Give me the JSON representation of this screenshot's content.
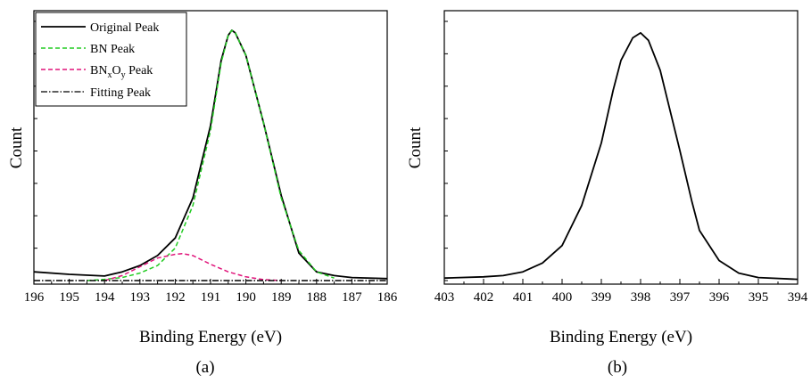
{
  "chart_data": [
    {
      "type": "line",
      "panel_label": "(a)",
      "xlabel": "Binding Energy (eV)",
      "ylabel": "Count",
      "xlim": [
        196,
        186
      ],
      "x_reversed": true,
      "ylim": [
        0,
        1.05
      ],
      "y_tick_labels_shown": false,
      "x_ticks": [
        196,
        195,
        194,
        193,
        192,
        191,
        190,
        189,
        188,
        187,
        186
      ],
      "legend_position": "top-left",
      "grid": false,
      "series": [
        {
          "name": "Original Peak",
          "style": "solid",
          "color": "#000000",
          "x": [
            196,
            195,
            194,
            193.5,
            193,
            192.5,
            192,
            191.5,
            191,
            190.7,
            190.5,
            190.4,
            190.3,
            190,
            189.5,
            189,
            188.5,
            188,
            187.5,
            187,
            186
          ],
          "y": [
            0.035,
            0.025,
            0.018,
            0.035,
            0.06,
            0.1,
            0.17,
            0.33,
            0.62,
            0.88,
            0.98,
            1.0,
            0.99,
            0.9,
            0.63,
            0.34,
            0.11,
            0.035,
            0.02,
            0.012,
            0.008
          ]
        },
        {
          "name": "BN Peak",
          "style": "dashed",
          "color": "#22cc22",
          "x": [
            194.5,
            194,
            193.5,
            193,
            192.5,
            192,
            191.5,
            191,
            190.7,
            190.5,
            190.4,
            190.3,
            190,
            189.5,
            189,
            188.5,
            188,
            187.5
          ],
          "y": [
            0.0,
            0.005,
            0.012,
            0.03,
            0.06,
            0.13,
            0.3,
            0.6,
            0.87,
            0.98,
            1.0,
            0.99,
            0.9,
            0.63,
            0.33,
            0.12,
            0.035,
            0.01
          ]
        },
        {
          "name": "BN_xO_y Peak",
          "style": "dashed",
          "color": "#e0147a",
          "x": [
            194,
            193.5,
            193,
            192.5,
            192,
            191.8,
            191.5,
            191,
            190.5,
            190,
            189.5,
            189
          ],
          "y": [
            0.0,
            0.02,
            0.055,
            0.09,
            0.105,
            0.108,
            0.1,
            0.065,
            0.035,
            0.015,
            0.004,
            0.0
          ]
        },
        {
          "name": "Fitting Peak",
          "style": "dashdot",
          "color": "#000000",
          "x": [
            196,
            186
          ],
          "y": [
            0.0,
            0.0
          ]
        }
      ]
    },
    {
      "type": "line",
      "panel_label": "(b)",
      "xlabel": "Binding Energy (eV)",
      "ylabel": "Count",
      "xlim": [
        403,
        394
      ],
      "x_reversed": true,
      "ylim": [
        0,
        1.05
      ],
      "y_tick_labels_shown": false,
      "x_ticks": [
        403,
        402,
        401,
        400,
        399,
        398,
        397,
        396,
        395,
        394
      ],
      "grid": false,
      "series": [
        {
          "style": "solid",
          "color": "#000000",
          "x": [
            403,
            402,
            401.5,
            401,
            400.5,
            400,
            399.5,
            399,
            398.7,
            398.5,
            398.2,
            398,
            397.8,
            397.5,
            397,
            396.7,
            396.5,
            396,
            395.5,
            395,
            394
          ],
          "y": [
            0.01,
            0.015,
            0.02,
            0.035,
            0.07,
            0.14,
            0.3,
            0.55,
            0.76,
            0.88,
            0.97,
            0.99,
            0.96,
            0.84,
            0.52,
            0.32,
            0.2,
            0.08,
            0.03,
            0.012,
            0.005
          ]
        }
      ]
    }
  ],
  "legend": {
    "entries": [
      {
        "main": "Original Peak"
      },
      {
        "main": "BN Peak"
      },
      {
        "pre": "BN",
        "sub1": "x",
        "mid": "O",
        "sub2": "y",
        "post": " Peak"
      },
      {
        "main": "Fitting Peak"
      }
    ]
  }
}
